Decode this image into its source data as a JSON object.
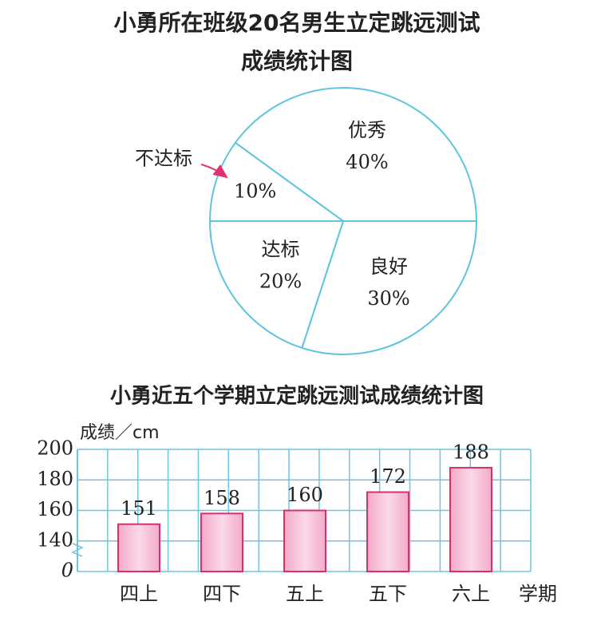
{
  "chart_data": [
    {
      "type": "pie",
      "title": [
        "小勇所在班级20名男生立定跳远测试",
        "成绩统计图"
      ],
      "categories": [
        "优秀",
        "良好",
        "达标",
        "不达标"
      ],
      "values": [
        40,
        30,
        20,
        10
      ],
      "value_labels": [
        "40%",
        "30%",
        "20%",
        "10%"
      ],
      "color": "#5ec4e0"
    },
    {
      "type": "bar",
      "title": "小勇近五个学期立定跳远测试成绩统计图",
      "ylabel": "成绩／cm",
      "xlabel": "学期",
      "categories": [
        "四上",
        "四下",
        "五上",
        "五下",
        "六上"
      ],
      "values": [
        151,
        158,
        160,
        172,
        188
      ],
      "ylim": [
        0,
        200
      ],
      "yticks": [
        0,
        140,
        160,
        180,
        200
      ],
      "axis_break": true,
      "grid": true,
      "color": "#f7c3da"
    }
  ]
}
